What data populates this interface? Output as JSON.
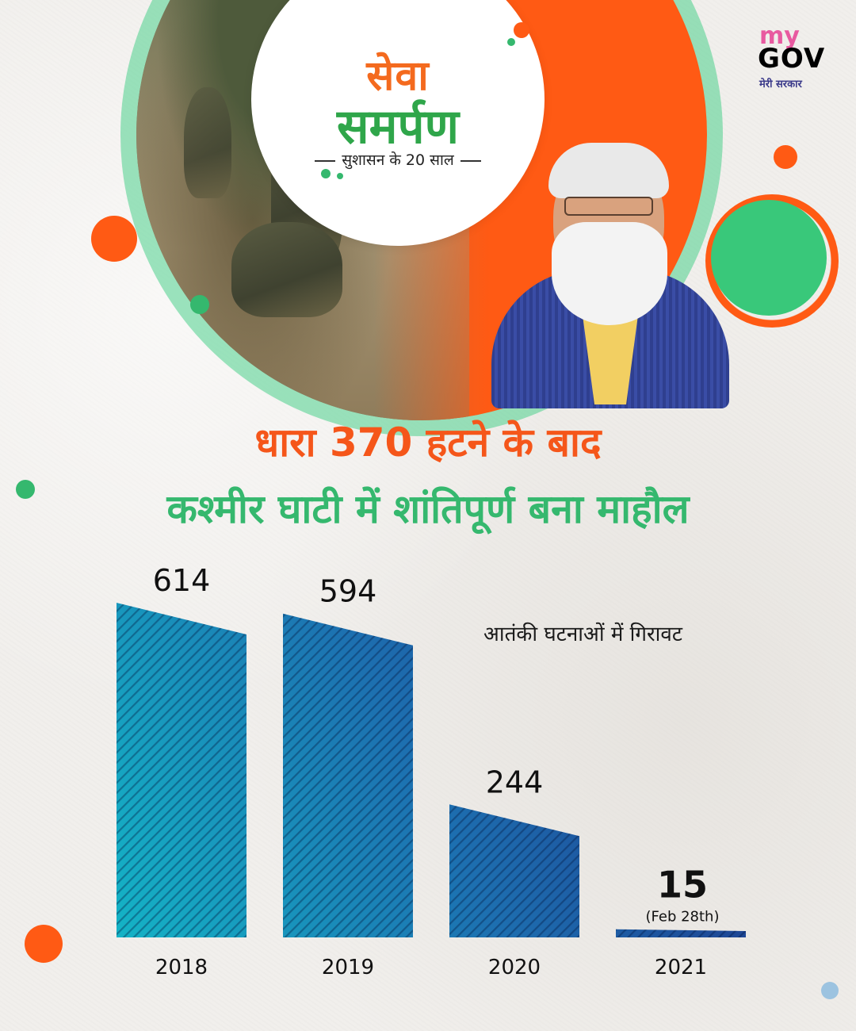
{
  "header": {
    "logo_line1": "सेवा",
    "logo_line2": "समर्पण",
    "logo_tagline": "सुशासन के 20 साल",
    "brand_my": "my",
    "brand_gov": "GOV",
    "brand_sub": "मेरी सरकार"
  },
  "headline": {
    "line1": "धारा 370 हटने के बाद",
    "line2": "कश्मीर घाटी में शांतिपूर्ण बना माहौल"
  },
  "colors": {
    "orange": "#f5561a",
    "green": "#35b86e",
    "bar_light": "#14b4c6",
    "bar_dark": "#1e2f86"
  },
  "chart_data": {
    "type": "bar",
    "title": "आतंकी घटनाओं में गिरावट",
    "categories": [
      "2018",
      "2019",
      "2020",
      "2021"
    ],
    "values": [
      614,
      594,
      244,
      15
    ],
    "value_labels": [
      "614",
      "594",
      "244",
      "15"
    ],
    "notes": [
      "",
      "",
      "",
      "(Feb 28th)"
    ],
    "xlabel": "",
    "ylabel": "",
    "ylim": [
      0,
      650
    ],
    "grid": false,
    "legend": "none"
  }
}
